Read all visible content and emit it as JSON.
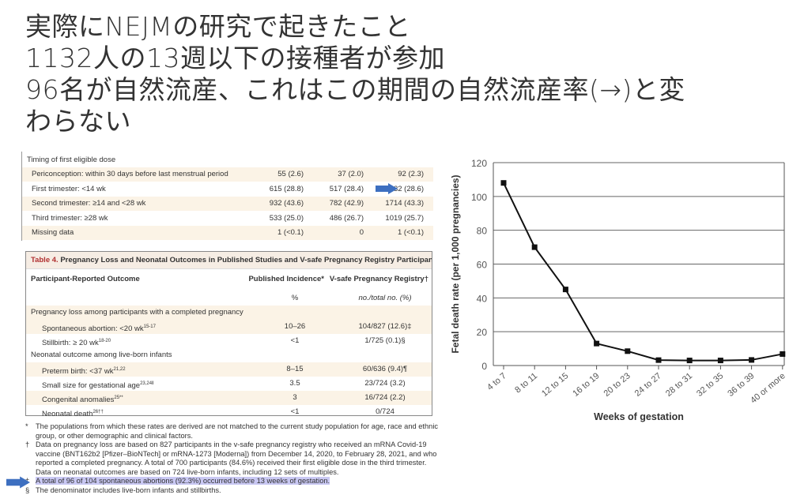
{
  "title": {
    "lines": [
      "実際にNEJMの研究で起きたこと",
      "1132人の13週以下の接種者が参加",
      "96名が自然流産、これはこの期間の自然流産率(→)と変",
      "わらない"
    ]
  },
  "table1": {
    "section": "Timing of first eligible dose",
    "rows": [
      {
        "label": "Periconception: within 30 days before last menstrual period",
        "c1": "55 (2.6)",
        "c2": "37 (2.0)",
        "c3": "92 (2.3)"
      },
      {
        "label": "First trimester: <14 wk",
        "c1": "615 (28.8)",
        "c2": "517 (28.4)",
        "c3": "1132 (28.6)"
      },
      {
        "label": "Second trimester: ≥14 and <28 wk",
        "c1": "932 (43.6)",
        "c2": "782 (42.9)",
        "c3": "1714 (43.3)"
      },
      {
        "label": "Third trimester: ≥28 wk",
        "c1": "533 (25.0)",
        "c2": "486 (26.7)",
        "c3": "1019 (25.7)"
      },
      {
        "label": "Missing data",
        "c1": "1 (<0.1)",
        "c2": "0",
        "c3": "1 (<0.1)"
      }
    ]
  },
  "table4": {
    "caption_num": "Table 4.",
    "caption": "Pregnancy Loss and Neonatal Outcomes in Published Studies and V-safe Pregnancy Registry Participants.",
    "headers": [
      "Participant-Reported Outcome",
      "Published Incidence*",
      "V-safe Pregnancy Registry†"
    ],
    "units": [
      "%",
      "no./total no. (%)"
    ],
    "section1": "Pregnancy loss among participants with a completed pregnancy",
    "section2": "Neonatal outcome among live-born infants",
    "rows": [
      {
        "label": "Spontaneous abortion: <20 wk",
        "sup": "15-17",
        "pub": "10–26",
        "vsafe": "104/827 (12.6)‡"
      },
      {
        "label": "Stillbirth: ≥ 20 wk",
        "sup": "18-20",
        "pub": "<1",
        "vsafe": "1/725 (0.1)§"
      },
      {
        "label": "Preterm birth: <37 wk",
        "sup": "21,22",
        "pub": "8–15",
        "vsafe": "60/636 (9.4)¶"
      },
      {
        "label": "Small size for gestational age",
        "sup": "23,24‖",
        "pub": "3.5",
        "vsafe": "23/724 (3.2)"
      },
      {
        "label": "Congenital anomalies",
        "sup": "25**",
        "pub": "3",
        "vsafe": "16/724 (2.2)"
      },
      {
        "label": "Neonatal death",
        "sup": "26††",
        "pub": "<1",
        "vsafe": "0/724"
      }
    ]
  },
  "notes": [
    {
      "mark": "*",
      "text": "The populations from which these rates are derived are not matched to the current study population for age, race and ethnic group, or other demographic and clinical factors."
    },
    {
      "mark": "†",
      "text": "Data on pregnancy loss are based on 827 participants in the v-safe pregnancy registry who received an mRNA Covid-19 vaccine (BNT162b2 [Pfizer–BioNTech] or mRNA-1273 [Moderna]) from December 14, 2020, to February 28, 2021, and who reported a completed pregnancy. A total of 700 participants (84.6%) received their first eligible dose in the third trimester. Data on neonatal outcomes are based on 724 live-born infants, including 12 sets of multiples."
    },
    {
      "mark": "‡",
      "text": "A total of 96 of 104 spontaneous abortions (92.3%) occurred before 13 weeks of gestation."
    },
    {
      "mark": "§",
      "text": "The denominator includes live-born infants and stillbirths."
    }
  ],
  "colors": {
    "arrow": "#3d6fc0",
    "highlight": "#c9c8f3",
    "caption_red": "#b03030"
  },
  "chart_data": {
    "type": "line",
    "title": "",
    "xlabel": "Weeks of gestation",
    "ylabel": "Fetal death rate (per 1,000 pregnancies)",
    "categories": [
      "4 to 7",
      "8 to 11",
      "12 to 15",
      "16 to 19",
      "20 to 23",
      "24 to 27",
      "28 to 31",
      "32 to 35",
      "36 to 39",
      "40 or more"
    ],
    "values": [
      108,
      70,
      45,
      13,
      8.5,
      3.2,
      3,
      3,
      3.3,
      6.8
    ],
    "ylim": [
      0,
      120
    ],
    "yticks": [
      0,
      20,
      40,
      60,
      80,
      100,
      120
    ],
    "grid": true
  }
}
